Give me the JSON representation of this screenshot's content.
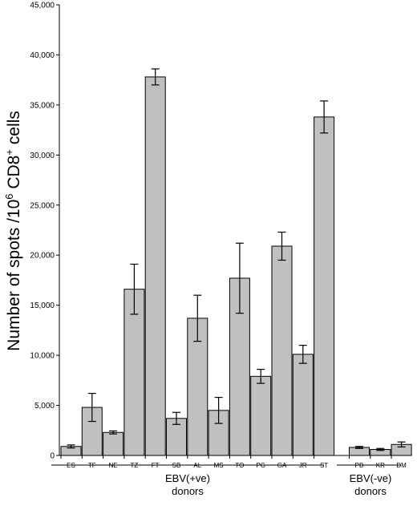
{
  "chart_data": {
    "type": "bar",
    "ylabel": {
      "pre": "Number of spots /10",
      "sup1": "6",
      "mid": " CD8",
      "sup2": "+",
      "post": " cells"
    },
    "ylim": [
      0,
      45000
    ],
    "yticks": [
      0,
      5000,
      10000,
      15000,
      20000,
      25000,
      30000,
      35000,
      40000,
      45000
    ],
    "ytick_labels": [
      "0",
      "5,000",
      "10,000",
      "15,000",
      "20,000",
      "25,000",
      "30,000",
      "35,000",
      "40,000",
      "45,000"
    ],
    "categories": [
      "ES",
      "TF",
      "NE",
      "TZ",
      "FT",
      "SB",
      "AL",
      "MS",
      "TO",
      "PG",
      "GA",
      "JR",
      "ST",
      "PB",
      "KR",
      "DM"
    ],
    "values": [
      900,
      4800,
      2300,
      16600,
      37800,
      3700,
      13700,
      4500,
      17700,
      7900,
      20900,
      10100,
      33800,
      800,
      600,
      1100
    ],
    "errors": [
      150,
      1400,
      150,
      2500,
      800,
      600,
      2300,
      1300,
      3500,
      700,
      1400,
      900,
      1600,
      100,
      100,
      250
    ],
    "groups": [
      {
        "line1": "EBV(+ve)",
        "line2": "donors"
      },
      {
        "line1": "EBV(-ve)",
        "line2": "donors"
      }
    ],
    "bar_color": "#c0c0c0",
    "grid": false
  }
}
